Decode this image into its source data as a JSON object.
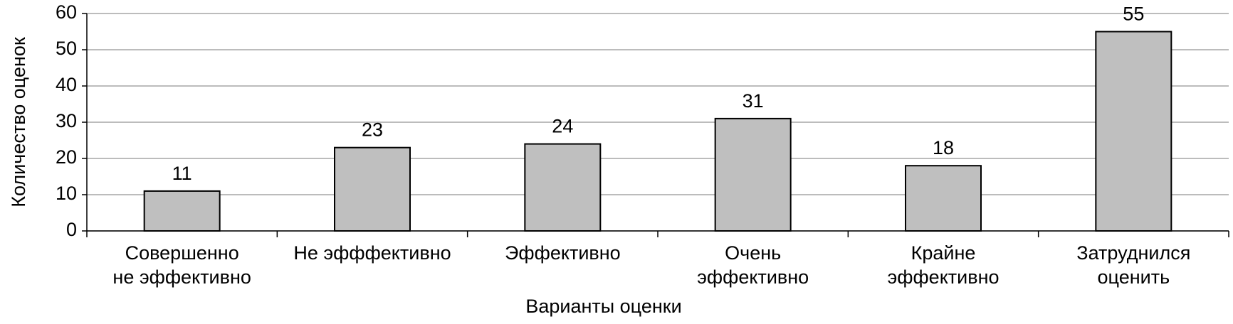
{
  "chart_data": {
    "type": "bar",
    "x_label": "Варианты оценки",
    "y_label": "Количество оценок",
    "categories": [
      "Совершенно не эффективно",
      "Не эфффективно",
      "Эффективно",
      "Очень эффективно",
      "Крайне эффективно",
      "Затруднился оценить"
    ],
    "values": [
      11,
      23,
      24,
      31,
      18,
      55
    ],
    "color": "#bfbfbf",
    "ylim": [
      0,
      60
    ],
    "yticks": [
      0,
      10,
      20,
      30,
      40,
      50,
      60
    ],
    "grid": true
  }
}
